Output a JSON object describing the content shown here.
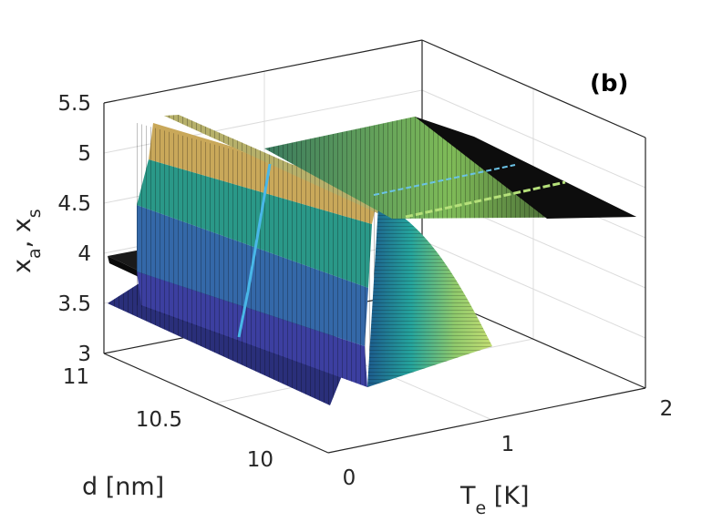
{
  "chart_data": {
    "type": "surface3d",
    "panel_label": "(b)",
    "xlabel": "d [nm]",
    "ylabel": "T",
    "ylabel_sub": "e",
    "ylabel_unit": " [K]",
    "zlabel": {
      "a": "x",
      "a_sub": "a",
      "sep": ", ",
      "b": "x",
      "b_sub": "s"
    },
    "x_ticks": [
      "11",
      "10.5",
      "10"
    ],
    "x_tick_values": [
      11,
      10.5,
      10
    ],
    "y_ticks": [
      "0",
      "1",
      "2"
    ],
    "y_tick_values": [
      0,
      1,
      2
    ],
    "z_ticks": [
      "3",
      "3.5",
      "4",
      "4.5",
      "5",
      "5.5"
    ],
    "z_tick_values": [
      3,
      3.5,
      4,
      4.5,
      5,
      5.5
    ],
    "xlim": [
      9.8,
      11
    ],
    "ylim": [
      0,
      2
    ],
    "zlim": [
      3,
      5.5
    ],
    "grid": true,
    "colormap": "parula",
    "surfaces": [
      {
        "id": "x_s",
        "description_levels": [
          3.5,
          4.0,
          4.5,
          5.0,
          5.3
        ],
        "plateau_low_T": 5.3,
        "value_high_T": 4.4
      },
      {
        "id": "x_a",
        "value": 4.0
      }
    ]
  }
}
